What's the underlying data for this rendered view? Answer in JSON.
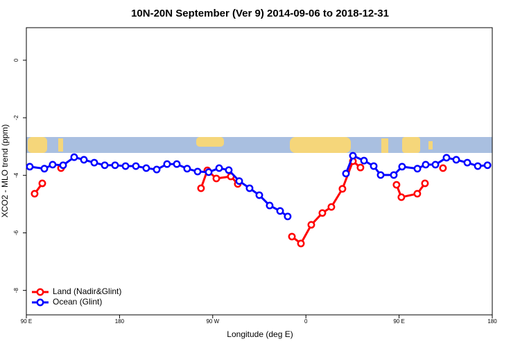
{
  "chart_data": {
    "type": "line",
    "title": "10N-20N September (Ver 9)   2014-09-06 to 2018-12-31",
    "x_label": "Longitude (deg E)",
    "y_label": "XCO2 - MLO trend (ppm)",
    "xlim": [
      90,
      540
    ],
    "ylim": [
      -8.85,
      1.13
    ],
    "xticks": [
      {
        "value": 90,
        "label": "90 E"
      },
      {
        "value": 180,
        "label": "180"
      },
      {
        "value": 270,
        "label": "90 W"
      },
      {
        "value": 360,
        "label": "0"
      },
      {
        "value": 450,
        "label": "90 E"
      },
      {
        "value": 540,
        "label": "180"
      }
    ],
    "yticks": [
      0,
      -2,
      -4,
      -6,
      -8
    ],
    "legend": "bottomleft",
    "series": [
      {
        "name": "Land (Nadir&Glint)",
        "color": "#ff0000",
        "x": [
          98.0,
          105.4,
          null,
          123.5,
          null,
          258.7,
          264.8,
          273.5,
          287.5,
          294.2,
          null,
          346.5,
          355.2,
          365.2,
          375.9,
          384.6,
          395.3,
          405.4,
          412.7,
          null,
          447.5,
          452.2,
          467.6,
          475.0,
          null,
          492.4
        ],
        "values": [
          -4.64,
          -4.28,
          null,
          -3.75,
          null,
          -4.45,
          -3.83,
          -4.11,
          -4.04,
          -4.3,
          null,
          -6.13,
          -6.37,
          -5.72,
          -5.31,
          -5.1,
          -4.47,
          -3.51,
          -3.73,
          null,
          -4.33,
          -4.76,
          -4.64,
          -4.28,
          null,
          -3.75
        ]
      },
      {
        "name": "Ocean (Glint)",
        "color": "#0000ff",
        "x": [
          93.3,
          107.4,
          115.4,
          125.5,
          136.2,
          145.6,
          155.6,
          165.7,
          175.7,
          185.8,
          195.8,
          205.8,
          215.9,
          225.9,
          235.3,
          245.3,
          255.4,
          266.1,
          276.2,
          285.5,
          295.6,
          305.6,
          315.0,
          325.0,
          335.1,
          342.4,
          null,
          398.7,
          405.4,
          416.1,
          425.5,
          432.2,
          444.9,
          452.9,
          467.7,
          475.7,
          485.1,
          495.8,
          505.2,
          515.9,
          526.0,
          535.4
        ],
        "values": [
          -3.7,
          -3.77,
          -3.63,
          -3.65,
          -3.37,
          -3.46,
          -3.56,
          -3.65,
          -3.65,
          -3.68,
          -3.68,
          -3.75,
          -3.8,
          -3.61,
          -3.61,
          -3.77,
          -3.87,
          -3.89,
          -3.75,
          -3.82,
          -4.2,
          -4.45,
          -4.69,
          -5.05,
          -5.24,
          -5.43,
          null,
          -3.94,
          -3.32,
          -3.49,
          -3.68,
          -3.99,
          -3.99,
          -3.7,
          -3.77,
          -3.63,
          -3.63,
          -3.39,
          -3.46,
          -3.56,
          -3.68,
          -3.65
        ]
      }
    ]
  }
}
